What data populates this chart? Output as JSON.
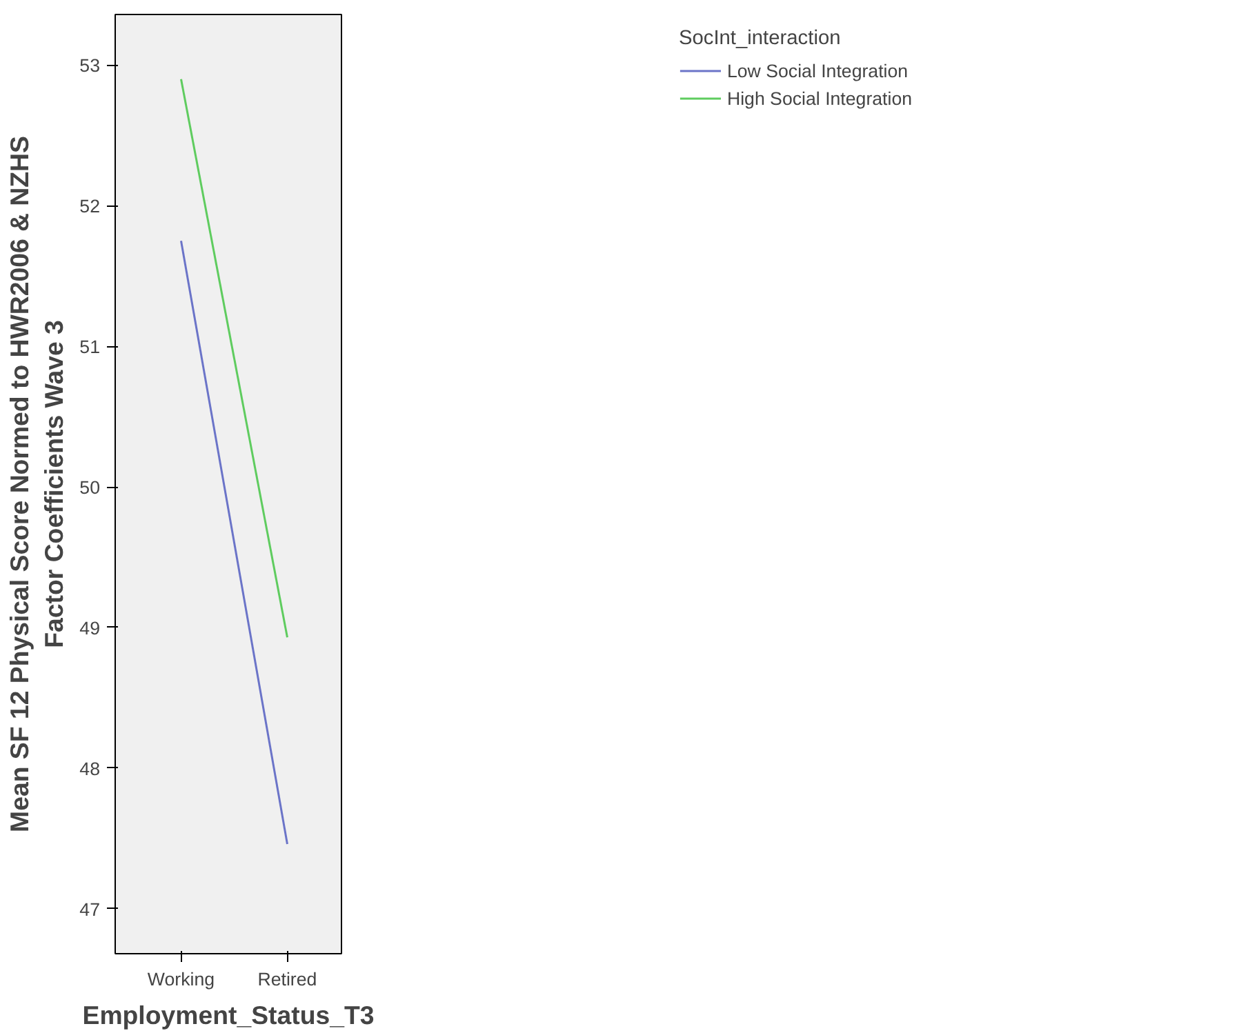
{
  "chart_data": {
    "type": "line",
    "xlabel": "Employment_Status_T3",
    "ylabel": "Mean SF 12 Physical Score Normed to HWR2006 & NZHS\nFactor Coefficients Wave 3",
    "legend_title": "SocInt_interaction",
    "categories": [
      "Working",
      "Retired"
    ],
    "series": [
      {
        "name": "Low Social Integration",
        "color": "#6b74c8",
        "values": [
          51.75,
          47.46
        ]
      },
      {
        "name": "High Social Integration",
        "color": "#5fcc5f",
        "values": [
          52.9,
          48.93
        ]
      }
    ],
    "ylim": [
      46.68,
      53.36
    ],
    "yticks": [
      47,
      48,
      49,
      50,
      51,
      52,
      53
    ],
    "grid": false,
    "legend": "top right",
    "marker": "none",
    "line_style": "solid"
  }
}
